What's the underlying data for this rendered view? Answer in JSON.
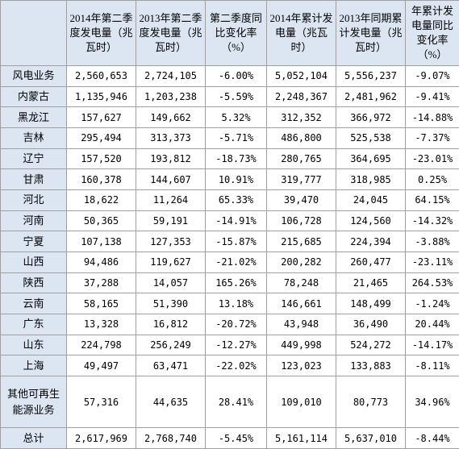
{
  "table": {
    "header": [
      "2014年第二季度发电量（兆瓦时）",
      "2013年第二季度发电量（兆瓦时）",
      "第二季度同比变化率（%）",
      "2014年累计发电量（兆瓦时）",
      "2013年同期累计发电量（兆瓦时）",
      "年累计发电量同比变化率（%）"
    ],
    "rows": [
      [
        "风电业务",
        "2,560,653",
        "2,724,105",
        "-6.00%",
        "5,052,104",
        "5,556,237",
        "-9.07%"
      ],
      [
        "内蒙古",
        "1,135,946",
        "1,203,238",
        "-5.59%",
        "2,248,367",
        "2,481,962",
        "-9.41%"
      ],
      [
        "黑龙江",
        "157,627",
        "149,662",
        "5.32%",
        "312,352",
        "366,972",
        "-14.88%"
      ],
      [
        "吉林",
        "295,494",
        "313,373",
        "-5.71%",
        "486,800",
        "525,538",
        "-7.37%"
      ],
      [
        "辽宁",
        "157,520",
        "193,812",
        "-18.73%",
        "280,765",
        "364,695",
        "-23.01%"
      ],
      [
        "甘肃",
        "160,378",
        "144,607",
        "10.91%",
        "319,777",
        "318,985",
        "0.25%"
      ],
      [
        "河北",
        "18,622",
        "11,264",
        "65.33%",
        "39,470",
        "24,045",
        "64.15%"
      ],
      [
        "河南",
        "50,365",
        "59,191",
        "-14.91%",
        "106,728",
        "124,560",
        "-14.32%"
      ],
      [
        "宁夏",
        "107,138",
        "127,353",
        "-15.87%",
        "215,685",
        "224,394",
        "-3.88%"
      ],
      [
        "山西",
        "94,486",
        "119,627",
        "-21.02%",
        "200,282",
        "260,477",
        "-23.11%"
      ],
      [
        "陕西",
        "37,288",
        "14,057",
        "165.26%",
        "78,248",
        "21,465",
        "264.53%"
      ],
      [
        "云南",
        "58,165",
        "51,390",
        "13.18%",
        "146,661",
        "148,499",
        "-1.24%"
      ],
      [
        "广东",
        "13,328",
        "16,812",
        "-20.72%",
        "43,948",
        "36,490",
        "20.44%"
      ],
      [
        "山东",
        "224,798",
        "256,249",
        "-12.27%",
        "449,998",
        "524,272",
        "-14.17%"
      ],
      [
        "上海",
        "49,497",
        "63,471",
        "-22.02%",
        "123,023",
        "133,883",
        "-8.11%"
      ],
      [
        "其他可再生能源业务",
        "57,316",
        "44,635",
        "28.41%",
        "109,010",
        "80,773",
        "34.96%"
      ],
      [
        "总计",
        "2,617,969",
        "2,768,740",
        "-5.45%",
        "5,161,114",
        "5,637,010",
        "-8.44%"
      ]
    ]
  }
}
